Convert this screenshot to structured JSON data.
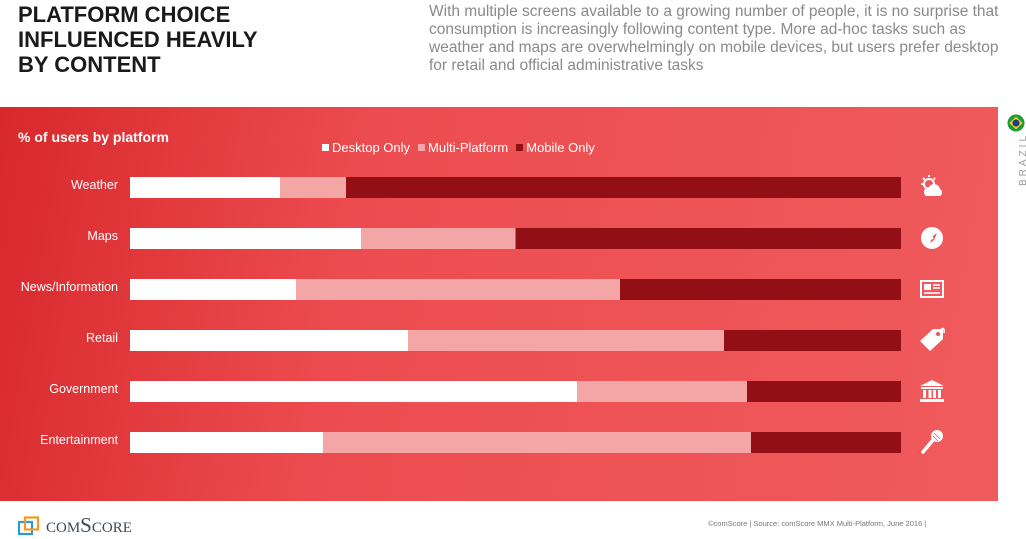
{
  "header": {
    "title": "PLATFORM CHOICE\nINFLUENCED HEAVILY\nBY CONTENT",
    "intro": "With multiple screens available to a growing number of people, it is no surprise that consumption is increasingly following content type. More ad-hoc tasks such as weather and maps are overwhelmingly on mobile devices, but users prefer desktop for retail and official administrative tasks"
  },
  "chart_data": {
    "type": "bar",
    "orientation": "horizontal-stacked-100",
    "title": "% of users by platform",
    "categories": [
      "Weather",
      "Maps",
      "News/Information",
      "Retail",
      "Government",
      "Entertainment"
    ],
    "series": [
      {
        "name": "Desktop Only",
        "color": "#ffffff",
        "values": [
          19.5,
          30,
          21.5,
          36,
          58,
          25
        ]
      },
      {
        "name": "Multi-Platform",
        "color": "#f4a5a6",
        "values": [
          8.5,
          20,
          42,
          41,
          22,
          55.5
        ]
      },
      {
        "name": "Mobile Only",
        "color": "#920f15",
        "values": [
          72,
          50,
          36.5,
          23,
          20,
          19.5
        ]
      }
    ],
    "xlim": [
      0,
      100
    ],
    "legend_position": "top-center",
    "grid": false
  },
  "icons": [
    "weather-icon",
    "compass-icon",
    "newspaper-icon",
    "price-tag-icon",
    "government-building-icon",
    "microphone-icon"
  ],
  "sidebar": {
    "country": "BRAZIL",
    "flag": "brazil-flag-icon"
  },
  "footer": {
    "logo_text": "comScore",
    "source": "©comScore  |  Source: comScore MMX Multi-Platform, June 2016  |"
  }
}
